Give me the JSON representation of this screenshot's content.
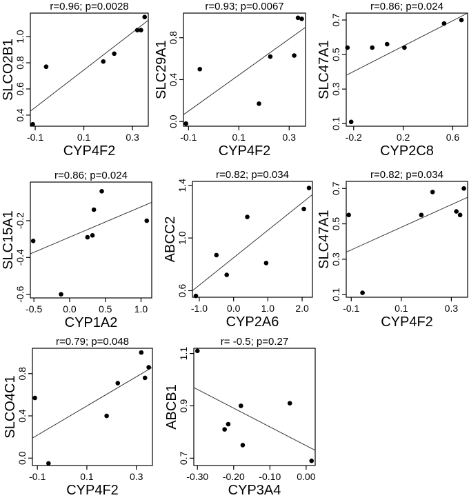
{
  "chart_data": [
    {
      "type": "scatter",
      "title": "r=0.96; p=0.0028",
      "xlabel": "CYP4F2",
      "ylabel": "SLCO2B1",
      "xticks": [
        "-0.1",
        "0.1",
        "0.3"
      ],
      "xtick_values": [
        -0.1,
        0.1,
        0.3
      ],
      "yticks": [
        "0.4",
        "0.6",
        "0.8",
        "1.0"
      ],
      "ytick_values": [
        0.4,
        0.6,
        0.8,
        1.0
      ],
      "xlim": [
        -0.12,
        0.365
      ],
      "ylim": [
        0.315,
        1.18
      ],
      "x": [
        -0.11,
        -0.055,
        0.18,
        0.225,
        0.32,
        0.335,
        0.35
      ],
      "y": [
        0.33,
        0.77,
        0.81,
        0.87,
        1.05,
        1.05,
        1.15
      ],
      "fit_line": [
        [
          -0.12,
          0.43
        ],
        [
          0.365,
          1.125
        ]
      ]
    },
    {
      "type": "scatter",
      "title": "r=0.93; p=0.0067",
      "xlabel": "CYP4F2",
      "ylabel": "SLC29A1",
      "xticks": [
        "-0.1",
        "0.1",
        "0.3"
      ],
      "xtick_values": [
        -0.1,
        0.1,
        0.3
      ],
      "yticks": [
        "0.0",
        "0.4",
        "0.8"
      ],
      "ytick_values": [
        0.0,
        0.4,
        0.8
      ],
      "xlim": [
        -0.12,
        0.365
      ],
      "ylim": [
        -0.045,
        1.035
      ],
      "x": [
        -0.11,
        -0.055,
        0.18,
        0.225,
        0.32,
        0.335,
        0.35
      ],
      "y": [
        -0.02,
        0.5,
        0.17,
        0.62,
        0.63,
        0.99,
        0.98
      ],
      "fit_line": [
        [
          -0.12,
          0.065
        ],
        [
          0.365,
          0.9
        ]
      ]
    },
    {
      "type": "scatter",
      "title": "r=0.86; p=0.024",
      "xlabel": "CYP2C8",
      "ylabel": "SLC47A1",
      "xticks": [
        "-0.2",
        "0.2",
        "0.6"
      ],
      "xtick_values": [
        -0.2,
        0.2,
        0.6
      ],
      "yticks": [
        "0.1",
        "0.3",
        "0.5",
        "0.7"
      ],
      "ytick_values": [
        0.1,
        0.3,
        0.5,
        0.7
      ],
      "xlim": [
        -0.26,
        0.72
      ],
      "ylim": [
        0.085,
        0.74
      ],
      "x": [
        -0.25,
        -0.22,
        -0.05,
        0.07,
        0.21,
        0.53,
        0.67
      ],
      "y": [
        0.54,
        0.11,
        0.54,
        0.56,
        0.54,
        0.68,
        0.7
      ],
      "fit_line": [
        [
          -0.26,
          0.38
        ],
        [
          0.72,
          0.74
        ]
      ]
    },
    {
      "type": "scatter",
      "title": "r=0.86; p=0.024",
      "xlabel": "CYP1A2",
      "ylabel": "SLC15A1",
      "xticks": [
        "-0.5",
        "0.0",
        "0.5",
        "1.0"
      ],
      "xtick_values": [
        -0.5,
        0.0,
        0.5,
        1.0
      ],
      "yticks": [
        "-0.6",
        "-0.4",
        "-0.2"
      ],
      "yticks_extra": "",
      "ytick_values": [
        -0.6,
        -0.4,
        -0.2
      ],
      "xlim": [
        -0.55,
        1.15
      ],
      "ylim": [
        -0.62,
        0.01
      ],
      "x": [
        -0.51,
        -0.12,
        0.25,
        0.32,
        0.34,
        0.45,
        1.08
      ],
      "y": [
        -0.31,
        -0.6,
        -0.29,
        -0.28,
        -0.14,
        -0.04,
        -0.2
      ],
      "fit_line": [
        [
          -0.55,
          -0.38
        ],
        [
          1.15,
          -0.1
        ]
      ]
    },
    {
      "type": "scatter",
      "title": "r=0.82; p=0.034",
      "xlabel": "CYP2A6",
      "ylabel": "ABCC2",
      "xticks": [
        "-1.0",
        "0.0",
        "1.0",
        "2.0"
      ],
      "xtick_values": [
        -1.0,
        0.0,
        1.0,
        2.0
      ],
      "yticks": [
        "0.6",
        "1.0",
        "1.4"
      ],
      "ytick_values": [
        0.6,
        1.0,
        1.4
      ],
      "xlim": [
        -1.2,
        2.3
      ],
      "ylim": [
        0.55,
        1.43
      ],
      "x": [
        -1.1,
        -0.5,
        -0.2,
        0.4,
        0.95,
        2.05,
        2.2
      ],
      "y": [
        0.56,
        0.87,
        0.72,
        1.16,
        0.81,
        1.22,
        1.38
      ],
      "fit_line": [
        [
          -1.2,
          0.6
        ],
        [
          2.3,
          1.33
        ]
      ]
    },
    {
      "type": "scatter",
      "title": "r=0.82; p=0.034",
      "xlabel": "CYP4F2",
      "ylabel": "SLC47A1",
      "xticks": [
        "-0.1",
        "0.1",
        "0.3"
      ],
      "xtick_values": [
        -0.1,
        0.1,
        0.3
      ],
      "yticks": [
        "0.1",
        "0.3",
        "0.5",
        "0.7"
      ],
      "ytick_values": [
        0.1,
        0.3,
        0.5,
        0.7
      ],
      "xlim": [
        -0.12,
        0.365
      ],
      "ylim": [
        0.085,
        0.74
      ],
      "x": [
        -0.11,
        -0.055,
        0.18,
        0.225,
        0.32,
        0.335,
        0.35
      ],
      "y": [
        0.55,
        0.11,
        0.55,
        0.68,
        0.57,
        0.55,
        0.7
      ],
      "fit_line": [
        [
          -0.12,
          0.34
        ],
        [
          0.365,
          0.65
        ]
      ]
    },
    {
      "type": "scatter",
      "title": "r=0.79; p=0.048",
      "xlabel": "CYP4F2",
      "ylabel": "SLCO4C1",
      "xticks": [
        "-0.1",
        "0.1",
        "0.3"
      ],
      "xtick_values": [
        -0.1,
        0.1,
        0.3
      ],
      "yticks": [
        "0.0",
        "0.4",
        "0.8"
      ],
      "ytick_values": [
        0.0,
        0.4,
        0.8
      ],
      "xlim": [
        -0.12,
        0.365
      ],
      "ylim": [
        -0.07,
        1.04
      ],
      "x": [
        -0.11,
        -0.055,
        0.18,
        0.225,
        0.32,
        0.335,
        0.35
      ],
      "y": [
        0.57,
        -0.05,
        0.4,
        0.71,
        1.0,
        0.76,
        0.86
      ],
      "fit_line": [
        [
          -0.12,
          0.19
        ],
        [
          0.365,
          0.86
        ]
      ]
    },
    {
      "type": "scatter",
      "title": "r= -0.5; p=0.27",
      "xlabel": "CYP3A4",
      "ylabel": "ABCB1",
      "xticks": [
        "-0.30",
        "-0.20",
        "-0.10",
        "0.00"
      ],
      "xtick_values": [
        -0.3,
        -0.2,
        -0.1,
        0.0
      ],
      "yticks": [
        "0.7",
        "0.9",
        "1.1"
      ],
      "ytick_values": [
        0.7,
        0.9,
        1.1
      ],
      "xlim": [
        -0.31,
        0.025
      ],
      "ylim": [
        0.672,
        1.12
      ],
      "x": [
        -0.3,
        -0.225,
        -0.215,
        -0.18,
        -0.175,
        -0.045,
        0.015
      ],
      "y": [
        1.11,
        0.81,
        0.83,
        0.9,
        0.75,
        0.91,
        0.69
      ],
      "fit_line": [
        [
          -0.31,
          0.97
        ],
        [
          0.025,
          0.73
        ]
      ]
    }
  ]
}
